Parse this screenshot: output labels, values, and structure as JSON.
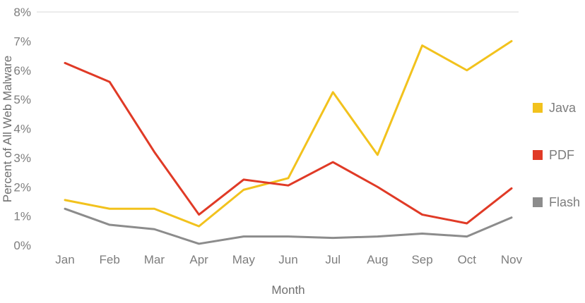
{
  "chart_data": {
    "type": "line",
    "title": "",
    "xlabel": "Month",
    "ylabel": "Percent of All Web Malware",
    "x": [
      "Jan",
      "Feb",
      "Mar",
      "Apr",
      "May",
      "Jun",
      "Jul",
      "Aug",
      "Sep",
      "Oct",
      "Nov"
    ],
    "ylim": [
      0,
      8
    ],
    "ytick_step": 1,
    "ytick_suffix": "%",
    "grid": "top-line-only",
    "legend_position": "right",
    "colors": {
      "java": "#F2C21D",
      "pdf": "#E03A26",
      "flash": "#8C8C8C",
      "gridline": "#D9D9D9",
      "text": "#7D7D7D"
    },
    "series": [
      {
        "name": "Java",
        "color": "#F2C21D",
        "values": [
          1.55,
          1.25,
          1.25,
          0.65,
          1.9,
          2.3,
          5.25,
          3.1,
          6.85,
          6.0,
          7.0
        ]
      },
      {
        "name": "PDF",
        "color": "#E03A26",
        "values": [
          6.25,
          5.6,
          3.2,
          1.05,
          2.25,
          2.05,
          2.85,
          2.0,
          1.05,
          0.75,
          1.95
        ]
      },
      {
        "name": "Flash",
        "color": "#8C8C8C",
        "values": [
          1.25,
          0.7,
          0.55,
          0.05,
          0.3,
          0.3,
          0.25,
          0.3,
          0.4,
          0.3,
          0.95
        ]
      }
    ]
  }
}
